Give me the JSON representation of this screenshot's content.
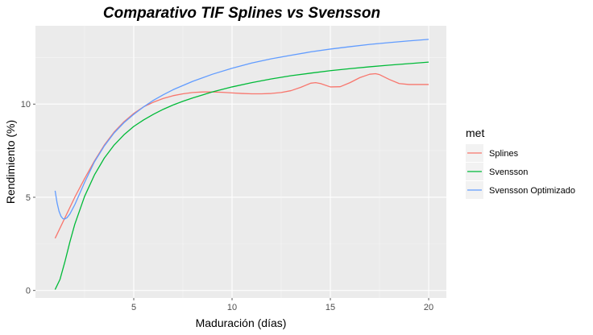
{
  "chart_data": {
    "type": "line",
    "title": "Comparativo TIF Splines vs Svensson",
    "xlabel": "Maduración (días)",
    "ylabel": "Rendimiento (%)",
    "xlim": [
      0.0,
      20.9
    ],
    "ylim": [
      -0.4,
      14.2
    ],
    "x_ticks": [
      5,
      10,
      15,
      20
    ],
    "x_tick_labels": [
      "5",
      "10",
      "15",
      "20"
    ],
    "y_ticks": [
      0,
      5,
      10
    ],
    "y_tick_labels": [
      "0",
      "5",
      "10"
    ],
    "grid": true,
    "legend": {
      "title": "met",
      "position": "right"
    },
    "series": [
      {
        "name": "Splines",
        "color": "#F8766D",
        "x": [
          1,
          1.5,
          2,
          2.5,
          3,
          3.5,
          4,
          4.5,
          5,
          5.5,
          6,
          6.5,
          7,
          7.5,
          8,
          8.5,
          9,
          9.5,
          10,
          10.5,
          11,
          11.5,
          12,
          12.5,
          13,
          13.5,
          14,
          14.25,
          14.5,
          15,
          15.5,
          16,
          16.5,
          17,
          17.3,
          17.5,
          18,
          18.5,
          19,
          19.5,
          20
        ],
        "y": [
          2.8,
          3.9,
          5.0,
          6.0,
          6.95,
          7.8,
          8.5,
          9.05,
          9.5,
          9.85,
          10.1,
          10.3,
          10.45,
          10.55,
          10.62,
          10.65,
          10.65,
          10.63,
          10.6,
          10.57,
          10.55,
          10.55,
          10.57,
          10.62,
          10.72,
          10.9,
          11.12,
          11.15,
          11.1,
          10.92,
          10.93,
          11.15,
          11.42,
          11.6,
          11.63,
          11.58,
          11.32,
          11.1,
          11.05,
          11.05,
          11.05
        ]
      },
      {
        "name": "Svensson",
        "color": "#00BA38",
        "x": [
          1,
          1.25,
          1.5,
          1.75,
          2,
          2.5,
          3,
          3.5,
          4,
          4.5,
          5,
          5.5,
          6,
          6.5,
          7,
          7.5,
          8,
          9,
          10,
          11,
          12,
          13,
          14,
          15,
          16,
          17,
          18,
          19,
          20
        ],
        "y": [
          0.05,
          0.6,
          1.55,
          2.6,
          3.55,
          5.05,
          6.2,
          7.1,
          7.8,
          8.35,
          8.8,
          9.15,
          9.45,
          9.72,
          9.95,
          10.15,
          10.33,
          10.65,
          10.92,
          11.15,
          11.35,
          11.52,
          11.66,
          11.79,
          11.9,
          12.0,
          12.09,
          12.17,
          12.25
        ]
      },
      {
        "name": "Svensson Optimizado",
        "color": "#619CFF",
        "x": [
          1,
          1.1,
          1.2,
          1.3,
          1.4,
          1.5,
          1.6,
          1.75,
          2,
          2.25,
          2.5,
          3,
          3.5,
          4,
          4.5,
          5,
          5.5,
          6,
          6.5,
          7,
          8,
          9,
          10,
          11,
          12,
          13,
          14,
          15,
          16,
          17,
          18,
          19,
          20
        ],
        "y": [
          5.35,
          4.7,
          4.25,
          3.98,
          3.85,
          3.84,
          3.9,
          4.1,
          4.6,
          5.2,
          5.8,
          6.9,
          7.75,
          8.45,
          9.0,
          9.45,
          9.85,
          10.2,
          10.5,
          10.77,
          11.22,
          11.6,
          11.92,
          12.2,
          12.43,
          12.62,
          12.8,
          12.95,
          13.08,
          13.2,
          13.3,
          13.39,
          13.47
        ]
      }
    ]
  }
}
